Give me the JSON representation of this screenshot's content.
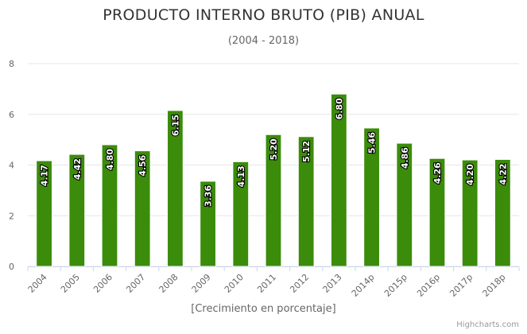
{
  "chart_data": {
    "type": "bar",
    "title": "PRODUCTO INTERNO BRUTO (PIB) ANUAL",
    "subtitle": "(2004 - 2018)",
    "xlabel": "[Crecimiento en porcentaje]",
    "ylabel": "",
    "categories": [
      "2004",
      "2005",
      "2006",
      "2007",
      "2008",
      "2009",
      "2010",
      "2011",
      "2012",
      "2013",
      "2014p",
      "2015p",
      "2016p",
      "2017p",
      "2018p"
    ],
    "values": [
      4.17,
      4.42,
      4.8,
      4.56,
      6.15,
      3.36,
      4.13,
      5.2,
      5.12,
      6.8,
      5.46,
      4.86,
      4.26,
      4.2,
      4.22
    ],
    "data_labels": [
      "4.17",
      "4.42",
      "4.80",
      "4.56",
      "6.15",
      "3.36",
      "4.13",
      "5.20",
      "5.12",
      "6.80",
      "5.46",
      "4.86",
      "4.26",
      "4.20",
      "4.22"
    ],
    "ylim": [
      0,
      8
    ],
    "yticks": [
      "0",
      "2",
      "4",
      "6",
      "8"
    ],
    "grid": true,
    "legend": "none",
    "colors": {
      "bar": "#3b8c0a",
      "bar_border": "#ffffff",
      "grid": "#e6e6e6",
      "axis": "#ccd6eb"
    }
  },
  "credits": "Highcharts.com"
}
